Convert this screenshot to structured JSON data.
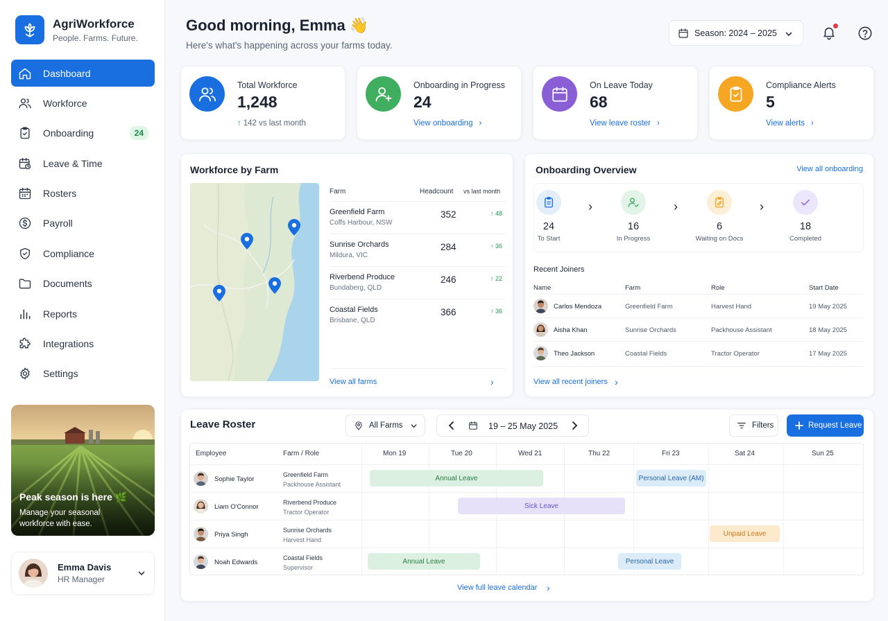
{
  "brand": {
    "name": "AgriWorkforce",
    "tagline": "People. Farms. Future."
  },
  "nav": [
    {
      "label": "Dashboard",
      "icon": "home-icon",
      "active": true
    },
    {
      "label": "Workforce",
      "icon": "users-icon"
    },
    {
      "label": "Onboarding",
      "icon": "clipboard-icon",
      "badge": "24"
    },
    {
      "label": "Leave & Time",
      "icon": "calendar-clock-icon"
    },
    {
      "label": "Rosters",
      "icon": "calendar-grid-icon"
    },
    {
      "label": "Payroll",
      "icon": "dollar-icon"
    },
    {
      "label": "Compliance",
      "icon": "shield-icon"
    },
    {
      "label": "Documents",
      "icon": "folder-icon"
    },
    {
      "label": "Reports",
      "icon": "bar-chart-icon"
    },
    {
      "label": "Integrations",
      "icon": "puzzle-icon"
    },
    {
      "label": "Settings",
      "icon": "gear-icon"
    }
  ],
  "promo": {
    "title": "Peak season is here 🌿",
    "subtitle": "Manage your seasonal workforce with ease."
  },
  "user": {
    "name": "Emma Davis",
    "role": "HR Manager"
  },
  "header": {
    "greeting": "Good morning, Emma 👋",
    "subtitle": "Here's what's happening across your farms today.",
    "season": "Season: 2024 – 2025"
  },
  "stats": [
    {
      "label": "Total Workforce",
      "value": "1,248",
      "foot": "142 vs last month",
      "color": "#1a6fe0"
    },
    {
      "label": "Onboarding in Progress",
      "value": "24",
      "foot": "View onboarding",
      "color": "#3fae5e"
    },
    {
      "label": "On Leave Today",
      "value": "68",
      "foot": "View leave roster",
      "color": "#8a5fd6"
    },
    {
      "label": "Compliance Alerts",
      "value": "5",
      "foot": "View alerts",
      "color": "#f5a623"
    }
  ],
  "farms": {
    "title": "Workforce by Farm",
    "headers": {
      "farm": "Farm",
      "headcount": "Headcount",
      "vs": "vs last month"
    },
    "rows": [
      {
        "name": "Greenfield Farm",
        "location": "Coffs Harbour, NSW",
        "headcount": "352",
        "change": "48"
      },
      {
        "name": "Sunrise Orchards",
        "location": "Mildura, VIC",
        "headcount": "284",
        "change": "36"
      },
      {
        "name": "Riverbend Produce",
        "location": "Bundaberg, QLD",
        "headcount": "246",
        "change": "22"
      },
      {
        "name": "Coastal Fields",
        "location": "Brisbane, QLD",
        "headcount": "366",
        "change": "36"
      }
    ],
    "view_all": "View all farms"
  },
  "onboarding": {
    "title": "Onboarding Overview",
    "view_all": "View all onboarding",
    "stages": [
      {
        "value": "24",
        "label": "To Start"
      },
      {
        "value": "16",
        "label": "In Progress"
      },
      {
        "value": "6",
        "label": "Waiting on Docs"
      },
      {
        "value": "18",
        "label": "Completed"
      }
    ],
    "recent_title": "Recent Joiners",
    "headers": {
      "name": "Name",
      "farm": "Farm",
      "role": "Role",
      "start": "Start Date"
    },
    "joiners": [
      {
        "name": "Carlos Mendoza",
        "farm": "Greenfield Farm",
        "role": "Harvest Hand",
        "start": "19 May 2025"
      },
      {
        "name": "Aisha Khan",
        "farm": "Sunrise Orchards",
        "role": "Packhouse Assistant",
        "start": "18 May 2025"
      },
      {
        "name": "Theo Jackson",
        "farm": "Coastal Fields",
        "role": "Tractor Operator",
        "start": "17 May 2025"
      }
    ],
    "view_joiners": "View all recent joiners"
  },
  "roster": {
    "title": "Leave Roster",
    "farm_filter": "All Farms",
    "date_range": "19 – 25 May 2025",
    "filters": "Filters",
    "request": "Request Leave",
    "col_employee": "Employee",
    "col_farm": "Farm / Role",
    "days": [
      "Mon 19",
      "Tue 20",
      "Wed 21",
      "Thu 22",
      "Fri 23",
      "Sat 24",
      "Sun 25"
    ],
    "rows": [
      {
        "name": "Sophie Taylor",
        "farm": "Greenfield Farm",
        "role": "Packhouse Assistant",
        "leaves": [
          {
            "label": "Annual Leave",
            "type": "annual"
          },
          {
            "label": "Personal Leave (AM)",
            "type": "personal"
          }
        ]
      },
      {
        "name": "Liam O'Connor",
        "farm": "Riverbend Produce",
        "role": "Tractor Operator",
        "leaves": [
          {
            "label": "Sick Leave",
            "type": "sick"
          }
        ]
      },
      {
        "name": "Priya Singh",
        "farm": "Sunrise Orchards",
        "role": "Harvest Hand",
        "leaves": [
          {
            "label": "Unpaid Leave",
            "type": "unpaid"
          }
        ]
      },
      {
        "name": "Noah Edwards",
        "farm": "Coastal Fields",
        "role": "Supervisor",
        "leaves": [
          {
            "label": "Annual Leave",
            "type": "annual"
          },
          {
            "label": "Personal Leave",
            "type": "personal"
          }
        ]
      }
    ],
    "view_full": "View full leave calendar"
  }
}
